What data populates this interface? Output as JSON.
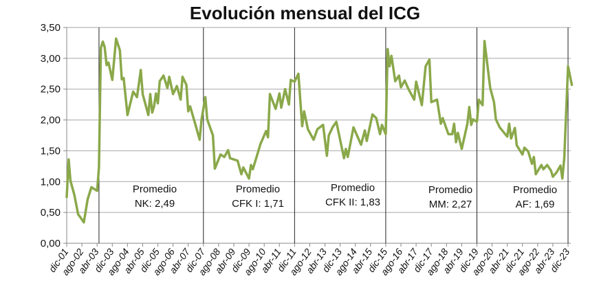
{
  "chart_data": {
    "type": "line",
    "title": "Evolución mensual del ICG",
    "xlabel": "",
    "ylabel": "",
    "ylim": [
      0,
      3.5
    ],
    "yticks": [
      "0,00",
      "0,50",
      "1,00",
      "1,50",
      "2,00",
      "2,50",
      "3,00",
      "3,50"
    ],
    "xlim": [
      "2001-12",
      "2023-12"
    ],
    "xticks": [
      "dic-01",
      "ago-02",
      "abr-03",
      "dic-03",
      "ago-04",
      "abr-05",
      "dic-05",
      "ago-06",
      "abr-07",
      "dic-07",
      "ago-08",
      "abr-09",
      "dic-09",
      "ago-10",
      "abr-11",
      "dic-11",
      "ago-12",
      "abr-13",
      "dic-13",
      "ago-14",
      "abr-15",
      "dic-15",
      "ago-16",
      "abr-17",
      "dic-17",
      "ago-18",
      "abr-19",
      "dic-19",
      "ago-20",
      "abr-21",
      "dic-21",
      "ago-22",
      "abr-23",
      "dic-23"
    ],
    "grid": "horizontal",
    "line_color": "#8aa84a",
    "series": [
      {
        "points": [
          [
            "2001-12",
            0.75
          ],
          [
            "2002-01",
            1.36
          ],
          [
            "2002-02",
            1.01
          ],
          [
            "2002-04",
            0.79
          ],
          [
            "2002-06",
            0.47
          ],
          [
            "2002-07",
            0.43
          ],
          [
            "2002-09",
            0.34
          ],
          [
            "2002-11",
            0.71
          ],
          [
            "2003-01",
            0.91
          ],
          [
            "2003-04",
            0.85
          ],
          [
            "2003-05",
            1.23
          ],
          [
            "2003-06",
            3.17
          ],
          [
            "2003-07",
            3.27
          ],
          [
            "2003-08",
            3.18
          ],
          [
            "2003-09",
            2.89
          ],
          [
            "2003-10",
            2.93
          ],
          [
            "2003-12",
            2.65
          ],
          [
            "2004-02",
            3.32
          ],
          [
            "2004-04",
            3.13
          ],
          [
            "2004-05",
            2.66
          ],
          [
            "2004-06",
            2.68
          ],
          [
            "2004-08",
            2.08
          ],
          [
            "2004-11",
            2.46
          ],
          [
            "2005-01",
            2.37
          ],
          [
            "2005-03",
            2.81
          ],
          [
            "2005-04",
            2.42
          ],
          [
            "2005-07",
            2.08
          ],
          [
            "2005-08",
            2.42
          ],
          [
            "2005-09",
            2.12
          ],
          [
            "2005-10",
            2.22
          ],
          [
            "2005-11",
            2.43
          ],
          [
            "2005-12",
            2.27
          ],
          [
            "2006-01",
            2.63
          ],
          [
            "2006-03",
            2.72
          ],
          [
            "2006-05",
            2.52
          ],
          [
            "2006-06",
            2.7
          ],
          [
            "2006-08",
            2.42
          ],
          [
            "2006-10",
            2.55
          ],
          [
            "2006-12",
            2.33
          ],
          [
            "2007-01",
            2.7
          ],
          [
            "2007-03",
            2.57
          ],
          [
            "2007-04",
            2.14
          ],
          [
            "2007-05",
            2.22
          ],
          [
            "2007-08",
            1.9
          ],
          [
            "2007-10",
            1.68
          ],
          [
            "2007-11",
            2.01
          ],
          [
            "2008-01",
            2.37
          ],
          [
            "2008-02",
            2.01
          ],
          [
            "2008-05",
            1.75
          ],
          [
            "2008-06",
            1.21
          ],
          [
            "2008-09",
            1.44
          ],
          [
            "2008-11",
            1.4
          ],
          [
            "2009-01",
            1.51
          ],
          [
            "2009-02",
            1.38
          ],
          [
            "2009-06",
            1.34
          ],
          [
            "2009-08",
            1.12
          ],
          [
            "2009-09",
            1.23
          ],
          [
            "2009-12",
            1.05
          ],
          [
            "2010-01",
            1.27
          ],
          [
            "2010-02",
            1.2
          ],
          [
            "2010-04",
            1.4
          ],
          [
            "2010-06",
            1.61
          ],
          [
            "2010-09",
            1.82
          ],
          [
            "2010-10",
            1.72
          ],
          [
            "2010-11",
            2.42
          ],
          [
            "2011-02",
            2.18
          ],
          [
            "2011-04",
            2.43
          ],
          [
            "2011-05",
            2.2
          ],
          [
            "2011-07",
            2.5
          ],
          [
            "2011-09",
            2.25
          ],
          [
            "2011-10",
            2.65
          ],
          [
            "2011-12",
            2.62
          ],
          [
            "2012-02",
            2.75
          ],
          [
            "2012-04",
            1.9
          ],
          [
            "2012-05",
            2.14
          ],
          [
            "2012-07",
            1.85
          ],
          [
            "2012-10",
            1.68
          ],
          [
            "2012-12",
            1.85
          ],
          [
            "2013-03",
            1.92
          ],
          [
            "2013-05",
            1.42
          ],
          [
            "2013-06",
            1.75
          ],
          [
            "2013-08",
            1.88
          ],
          [
            "2013-10",
            1.97
          ],
          [
            "2014-02",
            1.38
          ],
          [
            "2014-03",
            1.53
          ],
          [
            "2014-04",
            1.4
          ],
          [
            "2014-07",
            1.88
          ],
          [
            "2014-11",
            1.6
          ],
          [
            "2015-01",
            1.83
          ],
          [
            "2015-02",
            1.66
          ],
          [
            "2015-05",
            2.09
          ],
          [
            "2015-07",
            2.03
          ],
          [
            "2015-09",
            1.77
          ],
          [
            "2015-10",
            1.92
          ],
          [
            "2015-12",
            1.77
          ],
          [
            "2016-01",
            3.15
          ],
          [
            "2016-02",
            2.87
          ],
          [
            "2016-03",
            3.04
          ],
          [
            "2016-05",
            2.63
          ],
          [
            "2016-07",
            2.72
          ],
          [
            "2016-08",
            2.53
          ],
          [
            "2016-10",
            2.64
          ],
          [
            "2016-12",
            2.5
          ],
          [
            "2017-03",
            2.33
          ],
          [
            "2017-04",
            2.62
          ],
          [
            "2017-07",
            2.24
          ],
          [
            "2017-09",
            2.87
          ],
          [
            "2017-11",
            2.98
          ],
          [
            "2017-12",
            2.29
          ],
          [
            "2018-03",
            2.33
          ],
          [
            "2018-05",
            1.94
          ],
          [
            "2018-06",
            2.03
          ],
          [
            "2018-09",
            1.77
          ],
          [
            "2018-11",
            1.77
          ],
          [
            "2018-12",
            1.94
          ],
          [
            "2019-01",
            1.64
          ],
          [
            "2019-02",
            1.79
          ],
          [
            "2019-04",
            1.53
          ],
          [
            "2019-07",
            1.94
          ],
          [
            "2019-08",
            2.21
          ],
          [
            "2019-09",
            1.92
          ],
          [
            "2019-10",
            2.01
          ],
          [
            "2019-12",
            1.97
          ],
          [
            "2020-01",
            2.33
          ],
          [
            "2020-03",
            2.24
          ],
          [
            "2020-04",
            3.28
          ],
          [
            "2020-07",
            2.52
          ],
          [
            "2020-09",
            2.29
          ],
          [
            "2020-10",
            2.01
          ],
          [
            "2020-12",
            1.88
          ],
          [
            "2021-04",
            1.73
          ],
          [
            "2021-05",
            1.94
          ],
          [
            "2021-06",
            1.7
          ],
          [
            "2021-08",
            1.87
          ],
          [
            "2021-09",
            1.59
          ],
          [
            "2021-12",
            1.44
          ],
          [
            "2022-01",
            1.55
          ],
          [
            "2022-03",
            1.49
          ],
          [
            "2022-05",
            1.29
          ],
          [
            "2022-06",
            1.4
          ],
          [
            "2022-07",
            1.12
          ],
          [
            "2022-10",
            1.27
          ],
          [
            "2022-11",
            1.2
          ],
          [
            "2023-01",
            1.27
          ],
          [
            "2023-03",
            1.18
          ],
          [
            "2023-04",
            1.08
          ],
          [
            "2023-06",
            1.15
          ],
          [
            "2023-08",
            1.26
          ],
          [
            "2023-09",
            1.05
          ],
          [
            "2023-10",
            1.38
          ],
          [
            "2023-12",
            2.87
          ],
          [
            "2024-02",
            2.57
          ]
        ]
      }
    ],
    "period_separators": [
      "2003-05",
      "2007-12",
      "2011-12",
      "2015-12",
      "2019-12",
      "2023-12"
    ],
    "annotations": [
      {
        "line1": "Promedio",
        "line2": "NK: 2,49"
      },
      {
        "line1": "Promedio",
        "line2": "CFK I: 1,71"
      },
      {
        "line1": "Promedio",
        "line2": "CFK II: 1,83"
      },
      {
        "line1": "Promedio",
        "line2": "MM: 2,27"
      },
      {
        "line1": "Promedio",
        "line2": "AF: 1,69"
      }
    ]
  }
}
